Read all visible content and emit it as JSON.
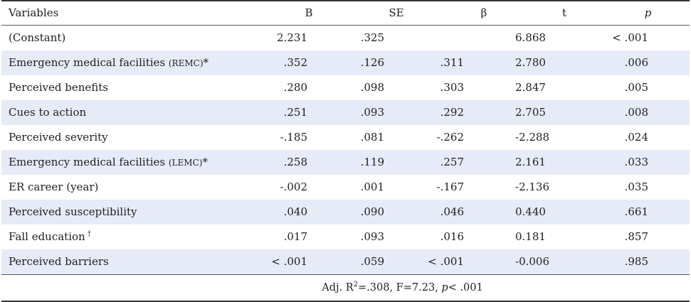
{
  "headers": {
    "variables": "Variables",
    "b": "B",
    "se": "SE",
    "beta": "β",
    "t": "t",
    "p": "p"
  },
  "rows": [
    {
      "name": "(Constant)",
      "suffix": "",
      "mark": "",
      "b": "2.231",
      "se": ".325",
      "beta": "",
      "t": "6.868",
      "p": "< .001"
    },
    {
      "name": "Emergency medical facilities ",
      "suffix": "(REMC)",
      "mark": "*",
      "b": ".352",
      "se": ".126",
      "beta": ".311",
      "t": "2.780",
      "p": ".006"
    },
    {
      "name": "Perceived benefits",
      "suffix": "",
      "mark": "",
      "b": ".280",
      "se": ".098",
      "beta": ".303",
      "t": "2.847",
      "p": ".005"
    },
    {
      "name": "Cues to action",
      "suffix": "",
      "mark": "",
      "b": ".251",
      "se": ".093",
      "beta": ".292",
      "t": "2.705",
      "p": ".008"
    },
    {
      "name": "Perceived severity",
      "suffix": "",
      "mark": "",
      "b": "-.185",
      "se": ".081",
      "beta": "-.262",
      "t": "-2.288",
      "p": ".024"
    },
    {
      "name": "Emergency medical facilities ",
      "suffix": "(LEMC)",
      "mark": "*",
      "b": ".258",
      "se": ".119",
      "beta": ".257",
      "t": "2.161",
      "p": ".033"
    },
    {
      "name": "ER career (year)",
      "suffix": "",
      "mark": "",
      "b": "-.002",
      "se": ".001",
      "beta": "-.167",
      "t": "-2.136",
      "p": ".035"
    },
    {
      "name": "Perceived susceptibility",
      "suffix": "",
      "mark": "",
      "b": ".040",
      "se": ".090",
      "beta": ".046",
      "t": "0.440",
      "p": ".661"
    },
    {
      "name": "Fall education",
      "suffix": "",
      "mark": "†",
      "b": ".017",
      "se": ".093",
      "beta": ".016",
      "t": "0.181",
      "p": ".857"
    },
    {
      "name": "Perceived barriers",
      "suffix": "",
      "mark": "",
      "b": "< .001",
      "se": ".059",
      "beta": "< .001",
      "t": "-0.006",
      "p": ".985"
    }
  ],
  "footer": {
    "adj_prefix": "Adj. R",
    "r_sup": "2",
    "r_value": "=.308,  F=7.23,  ",
    "p_label": "p",
    "p_value": "< .001"
  },
  "colors": {
    "shaded_row": "#e6ebf7",
    "text": "#1e1e1e"
  }
}
